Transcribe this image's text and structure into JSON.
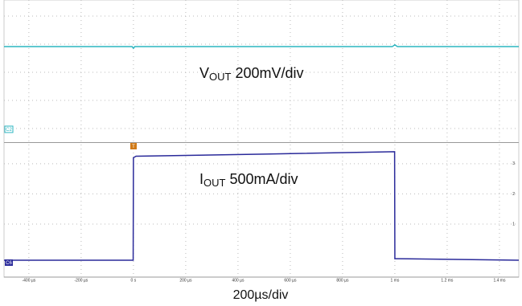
{
  "chart_data": [
    {
      "type": "line",
      "annotation": {
        "main": "V",
        "sub": "OUT",
        "rest": " 200mV/div"
      },
      "channel": "C2",
      "x": [
        -495,
        -5,
        0,
        5,
        990,
        1000,
        1010,
        1474
      ],
      "series": [
        {
          "color": "#2bb5c0",
          "values": [
            6.72,
            6.72,
            6.6,
            6.72,
            6.72,
            6.85,
            6.72,
            6.72
          ]
        }
      ],
      "xlim": [
        -495,
        1474
      ],
      "ylim": [
        0,
        10
      ],
      "grid": true
    },
    {
      "type": "line",
      "annotation": {
        "main": "I",
        "sub": "OUT",
        "rest": " 500mA/div"
      },
      "channel": "C6",
      "trigger": "T",
      "x": [
        -495,
        -1,
        0,
        10,
        500,
        999,
        1000,
        1010,
        1474
      ],
      "series": [
        {
          "color": "#2a2a9a",
          "values": [
            -0.2,
            -0.2,
            3.2,
            3.25,
            3.32,
            3.4,
            -0.15,
            -0.15,
            -0.2
          ]
        }
      ],
      "xlim": [
        -495,
        1474
      ],
      "ylim": [
        -0.76,
        3.69
      ],
      "yticks": [
        1,
        2,
        3
      ],
      "xticks": [
        {
          "value": -400,
          "label": "-400 µs"
        },
        {
          "value": -200,
          "label": "-200 µs"
        },
        {
          "value": 0,
          "label": "0 s"
        },
        {
          "value": 200,
          "label": "200 µs"
        },
        {
          "value": 400,
          "label": "400 µs"
        },
        {
          "value": 600,
          "label": "600 µs"
        },
        {
          "value": 800,
          "label": "800 µs"
        },
        {
          "value": 1000,
          "label": "1 ms"
        },
        {
          "value": 1200,
          "label": "1.2 ms"
        },
        {
          "value": 1400,
          "label": "1.4 ms"
        }
      ],
      "xlabel": "200µs/div",
      "grid": true
    }
  ]
}
